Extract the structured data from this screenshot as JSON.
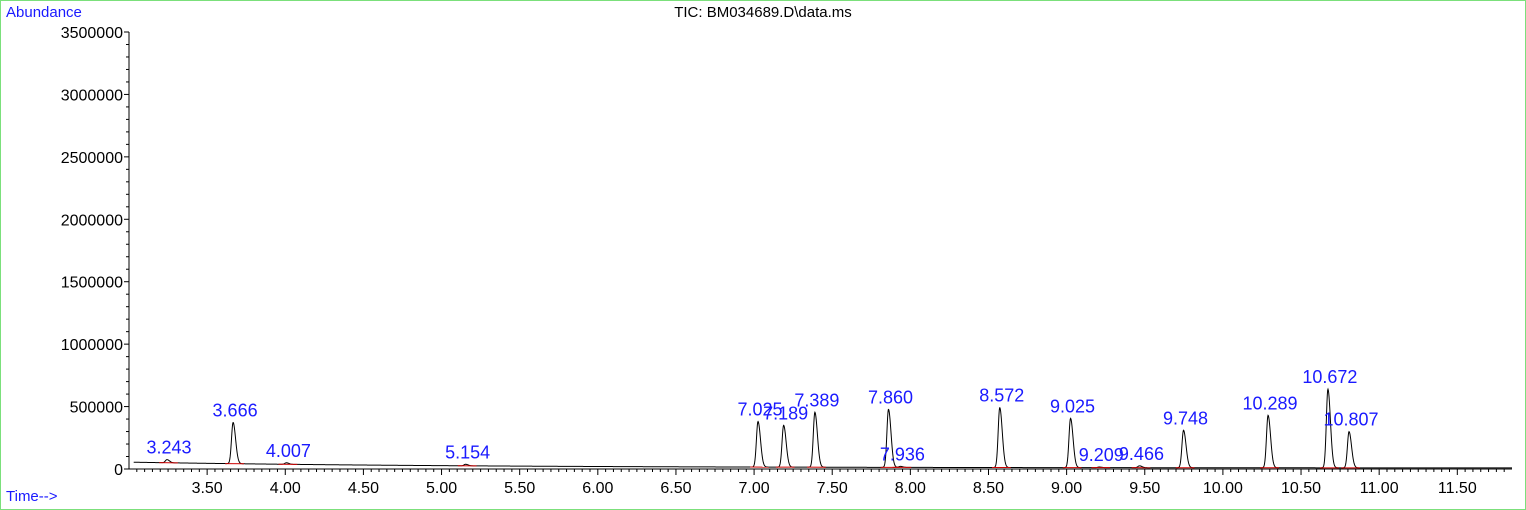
{
  "chart_data": {
    "type": "line",
    "title": "TIC: BM034689.D\\data.ms",
    "ylabel": "Abundance",
    "xlabel": "Time-->",
    "xlim": [
      3.0,
      11.85
    ],
    "ylim": [
      0,
      3500000
    ],
    "x_ticks": [
      3.5,
      4.0,
      4.5,
      5.0,
      5.5,
      6.0,
      6.5,
      7.0,
      7.5,
      8.0,
      8.5,
      9.0,
      9.5,
      10.0,
      10.5,
      11.0,
      11.5
    ],
    "x_tick_labels": [
      "3.50",
      "4.00",
      "4.50",
      "5.00",
      "5.50",
      "6.00",
      "6.50",
      "7.00",
      "7.50",
      "8.00",
      "8.50",
      "9.00",
      "9.50",
      "10.00",
      "10.50",
      "11.00",
      "11.50"
    ],
    "y_ticks": [
      0,
      500000,
      1000000,
      1500000,
      2000000,
      2500000,
      3000000,
      3500000
    ],
    "y_tick_labels": [
      "0",
      "500000",
      "1000000",
      "1500000",
      "2000000",
      "2500000",
      "3000000",
      "3500000"
    ],
    "baseline": {
      "start": 55000,
      "end": 8000
    },
    "peaks": [
      {
        "label": "3.243",
        "x": 3.243,
        "height": 25000
      },
      {
        "label": "3.666",
        "x": 3.666,
        "height": 330000
      },
      {
        "label": "4.007",
        "x": 4.007,
        "height": 12000
      },
      {
        "label": "5.154",
        "x": 5.154,
        "height": 12000
      },
      {
        "label": "7.025",
        "x": 7.025,
        "height": 365000
      },
      {
        "label": "7.189",
        "x": 7.189,
        "height": 335000
      },
      {
        "label": "7.389",
        "x": 7.389,
        "height": 440000
      },
      {
        "label": "7.860",
        "x": 7.86,
        "height": 465000
      },
      {
        "label": "7.936",
        "x": 7.936,
        "height": 8000
      },
      {
        "label": "8.572",
        "x": 8.572,
        "height": 480000
      },
      {
        "label": "9.025",
        "x": 9.025,
        "height": 395000
      },
      {
        "label": "9.209",
        "x": 9.209,
        "height": 5000
      },
      {
        "label": "9.466",
        "x": 9.466,
        "height": 15000
      },
      {
        "label": "9.748",
        "x": 9.748,
        "height": 300000
      },
      {
        "label": "10.289",
        "x": 10.289,
        "height": 420000
      },
      {
        "label": "10.672",
        "x": 10.672,
        "height": 630000
      },
      {
        "label": "10.807",
        "x": 10.807,
        "height": 290000
      }
    ],
    "colors": {
      "trace": "#000000",
      "baseline": "#cc0000",
      "peak_labels": "#1a1aff",
      "frame": "#7be07b"
    }
  }
}
